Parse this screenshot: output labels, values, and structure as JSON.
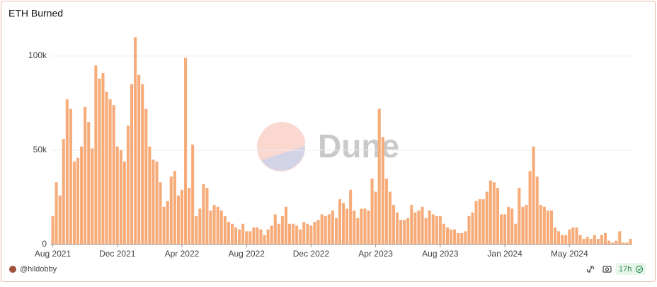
{
  "chart_data": {
    "type": "bar",
    "title": "ETH Burned",
    "categories": [
      "Aug 2021",
      null,
      null,
      null,
      null,
      null,
      null,
      null,
      null,
      null,
      null,
      null,
      null,
      null,
      null,
      null,
      null,
      null,
      "Dec 2021",
      null,
      null,
      null,
      null,
      null,
      null,
      null,
      null,
      null,
      null,
      null,
      null,
      null,
      null,
      null,
      null,
      null,
      "Apr 2022",
      null,
      null,
      null,
      null,
      null,
      null,
      null,
      null,
      null,
      null,
      null,
      null,
      null,
      null,
      null,
      null,
      null,
      "Aug 2022",
      null,
      null,
      null,
      null,
      null,
      null,
      null,
      null,
      null,
      null,
      null,
      null,
      null,
      null,
      null,
      null,
      null,
      "Dec 2022",
      null,
      null,
      null,
      null,
      null,
      null,
      null,
      null,
      null,
      null,
      null,
      null,
      null,
      null,
      null,
      null,
      null,
      "Apr 2023",
      null,
      null,
      null,
      null,
      null,
      null,
      null,
      null,
      null,
      null,
      null,
      null,
      null,
      null,
      null,
      null,
      null,
      "Aug 2023",
      null,
      null,
      null,
      null,
      null,
      null,
      null,
      null,
      null,
      null,
      null,
      null,
      null,
      null,
      null,
      null,
      null,
      "Jan 2024",
      null,
      null,
      null,
      null,
      null,
      null,
      null,
      null,
      null,
      null,
      null,
      null,
      null,
      null,
      null,
      null,
      null,
      "May 2024",
      null,
      null,
      null,
      null,
      null,
      null,
      null,
      null,
      null,
      null,
      null,
      null,
      null,
      null,
      null,
      null,
      null
    ],
    "values": [
      15000,
      33000,
      26000,
      56000,
      77000,
      72000,
      44000,
      46000,
      52000,
      73000,
      65000,
      51000,
      95000,
      88000,
      91000,
      81000,
      77000,
      74000,
      52000,
      50000,
      44000,
      63000,
      85000,
      110000,
      90000,
      85000,
      72000,
      52000,
      45000,
      44000,
      33000,
      20000,
      23000,
      36000,
      39000,
      26000,
      29000,
      99000,
      30000,
      53000,
      15000,
      19000,
      32000,
      30000,
      18000,
      21000,
      20000,
      18000,
      15000,
      12000,
      11000,
      9000,
      8000,
      11000,
      7000,
      7000,
      9000,
      9000,
      8000,
      5000,
      8000,
      10000,
      16000,
      11000,
      15000,
      20000,
      11000,
      11000,
      10000,
      8000,
      12000,
      11000,
      10000,
      12000,
      13000,
      16000,
      15000,
      16000,
      18000,
      14000,
      24000,
      22000,
      19000,
      29000,
      18000,
      14000,
      19000,
      19000,
      18000,
      35000,
      28000,
      72000,
      57000,
      35000,
      28000,
      21000,
      17000,
      13000,
      13000,
      14000,
      21000,
      17000,
      18000,
      20000,
      14000,
      18000,
      16000,
      15000,
      15000,
      11000,
      9000,
      8000,
      8000,
      6000,
      6000,
      7000,
      15000,
      17000,
      23000,
      24000,
      24000,
      28000,
      34000,
      33000,
      30000,
      16000,
      16000,
      20000,
      19000,
      11000,
      30000,
      20000,
      21000,
      39000,
      52000,
      36000,
      21000,
      20000,
      18000,
      18000,
      9000,
      7000,
      5000,
      5000,
      8000,
      9000,
      9000,
      5000,
      3000,
      4000,
      3000,
      5000,
      3000,
      5000,
      6000,
      2000,
      1000,
      2000,
      7000,
      1000,
      1000,
      3000
    ],
    "color": "#f7ab79",
    "ylim": [
      0,
      115000
    ],
    "yticks": [
      0,
      {
        "value": 50000,
        "label": "50k"
      },
      {
        "value": 100000,
        "label": "100k"
      }
    ],
    "grid": true
  },
  "watermark": "Dune",
  "footer": {
    "author": "@hildobby",
    "refresh_age": "17h"
  }
}
